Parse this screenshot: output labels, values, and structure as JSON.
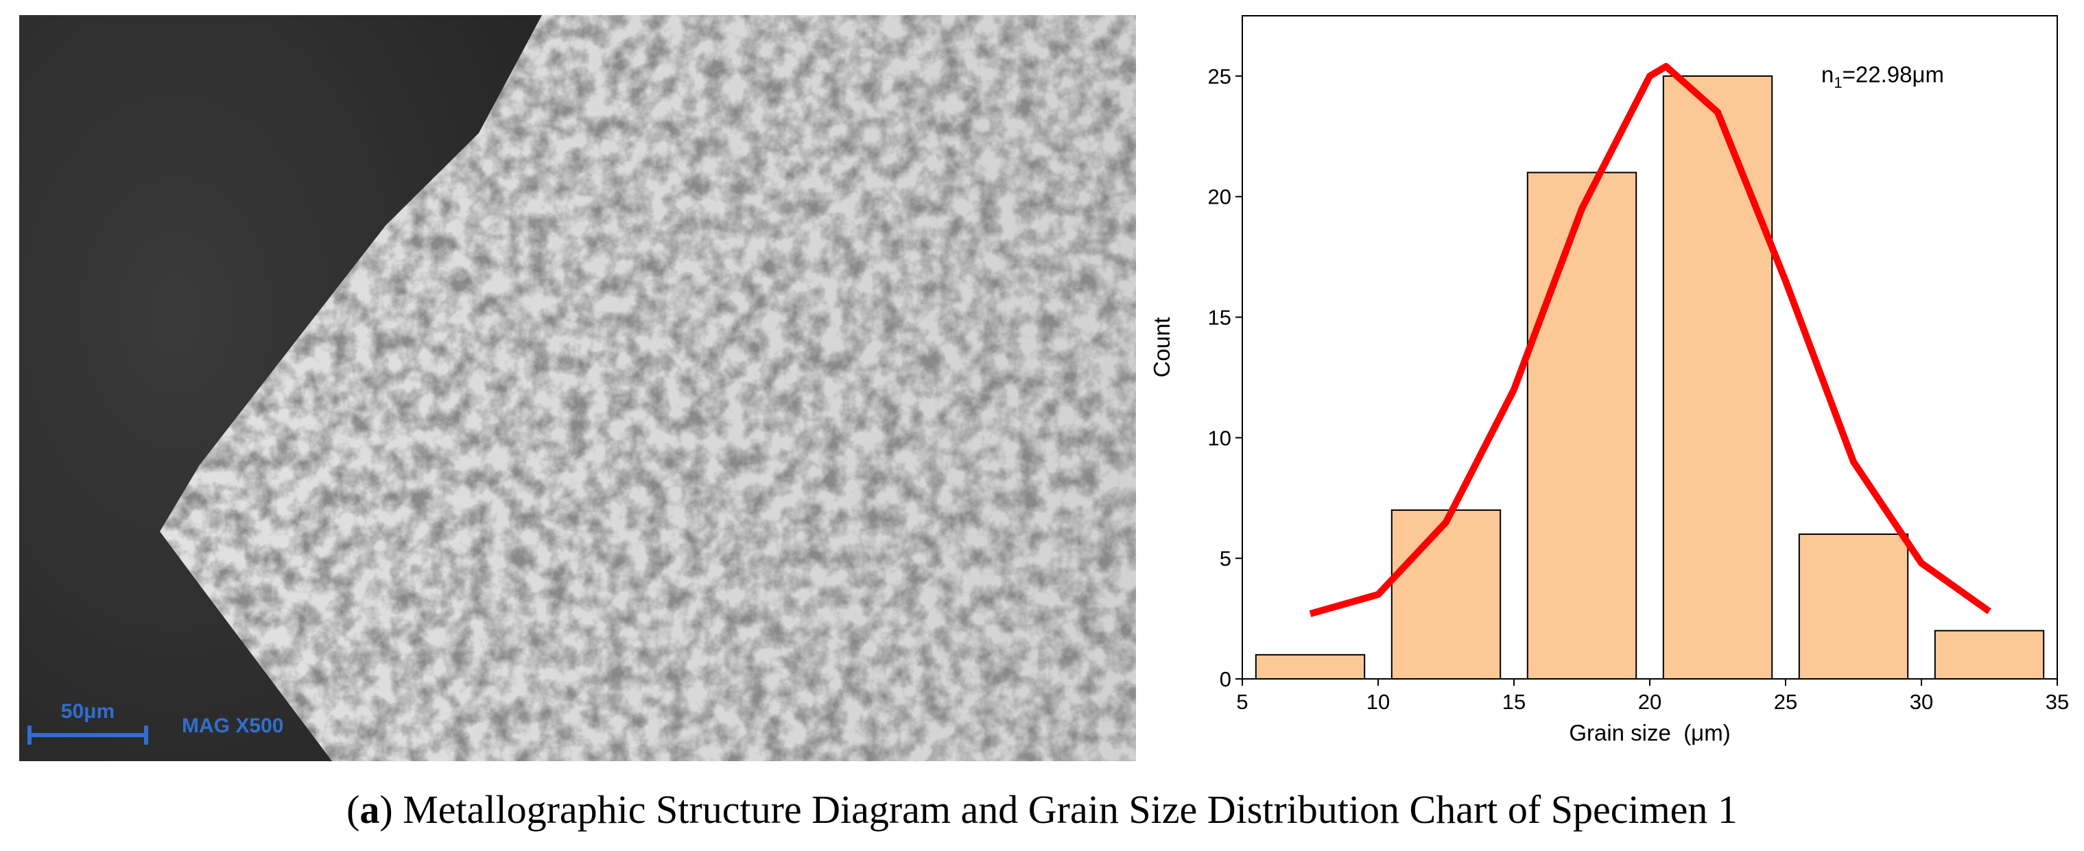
{
  "micrograph": {
    "scale_bar": "50μm",
    "magnification": "MAG X500"
  },
  "chart_data": {
    "type": "histogram",
    "x_label": "Grain size  (μm)",
    "y_label": "Count",
    "annotation": [
      "n",
      "1",
      "=22.98μm"
    ],
    "bins": [
      5,
      10,
      15,
      20,
      25,
      30,
      35
    ],
    "values": [
      1,
      7,
      21,
      25,
      6,
      2
    ],
    "color": "#fcc896",
    "fit": {
      "color": "#ff0000",
      "x": [
        7.5,
        10,
        12.5,
        15,
        17.5,
        20,
        20.6,
        22.5,
        25,
        27.5,
        30,
        32.5
      ],
      "values": [
        2.7,
        3.5,
        6.5,
        12,
        19.5,
        25,
        25.4,
        23.5,
        16.5,
        9,
        4.8,
        2.8
      ]
    },
    "xlim": [
      5,
      35
    ],
    "ylim": [
      0,
      27.5
    ],
    "xticks": [
      5,
      10,
      15,
      20,
      25,
      30,
      35
    ],
    "yticks": [
      0,
      5,
      10,
      15,
      20,
      25
    ]
  },
  "caption": [
    "(",
    "a",
    ") Metallographic Structure Diagram and Grain Size Distribution Chart of Specimen 1"
  ]
}
